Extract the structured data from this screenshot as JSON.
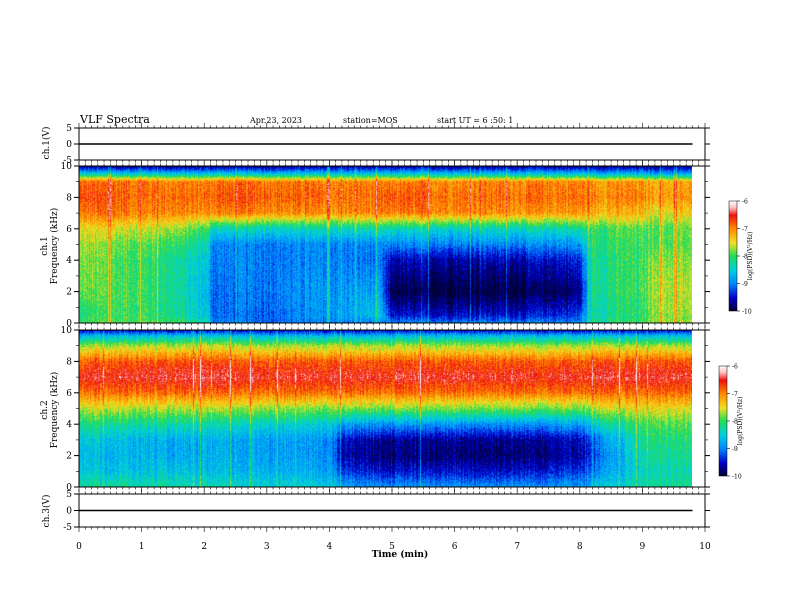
{
  "header": {
    "title": "VLF Spectra",
    "date": "Apr.23, 2023",
    "station": "station=MOS",
    "start_ut": "start UT = 6 :50: 1"
  },
  "panels": {
    "ch1_voltage": {
      "ylabel": "ch.1(V)",
      "ticks": [
        "5",
        "0",
        "-5"
      ]
    },
    "ch1_spectrogram": {
      "ylabel_channel": "ch.1",
      "ylabel": "Frequency (kHz)",
      "ticks": [
        "0",
        "2",
        "4",
        "6",
        "8",
        "10"
      ],
      "colorbar": {
        "label": "log(PSD)(V²/Hz)",
        "ticks": [
          "-6",
          "-7",
          "-8",
          "-9",
          "-10"
        ]
      }
    },
    "ch2_spectrogram": {
      "ylabel_channel": "ch.2",
      "ylabel": "Frequency (kHz)",
      "ticks": [
        "0",
        "2",
        "4",
        "6",
        "8",
        "10"
      ],
      "colorbar": {
        "label": "log(PSD)(V²/Hz)",
        "ticks": [
          "-6",
          "-7",
          "-8",
          "-9",
          "-10"
        ]
      }
    },
    "ch3_voltage": {
      "ylabel": "ch.3(V)",
      "ticks": [
        "5",
        "0",
        "-5"
      ]
    }
  },
  "xaxis": {
    "label": "Time (min)",
    "ticks": [
      "0",
      "1",
      "2",
      "3",
      "4",
      "5",
      "6",
      "7",
      "8",
      "9",
      "10"
    ]
  },
  "colors": {
    "deep": "#000033",
    "navy": "#00008b",
    "blue": "#0033ff",
    "cyan": "#00d0e0",
    "green": "#22dd55",
    "yellow": "#f0e020",
    "orange": "#ff8800",
    "red": "#ee1111",
    "pink": "#ffd0d0",
    "white": "#ffffff"
  },
  "chart_data": [
    {
      "type": "line",
      "title": "ch.1(V)",
      "x_label": "Time (min)",
      "xlim": [
        0,
        10
      ],
      "ylim": [
        -5,
        5
      ],
      "series": [
        {
          "x": [
            0,
            9.8
          ],
          "y": [
            0,
            0
          ]
        }
      ]
    },
    {
      "type": "heatmap",
      "title": "ch.1",
      "x_label": "Time (min)",
      "y_label": "Frequency (kHz)",
      "xlim": [
        0,
        10
      ],
      "ylim": [
        0,
        10
      ],
      "data_xlim": [
        0,
        9.8
      ],
      "color_label": "log(PSD)(V²/Hz)",
      "color_range": [
        -10,
        -6
      ],
      "time_knots": [
        0,
        0.5,
        1.0,
        1.5,
        2.05,
        2.15,
        3.0,
        4.0,
        4.8,
        5.0,
        6.0,
        7.0,
        8.0,
        8.2,
        9.0,
        9.2,
        9.8
      ],
      "freq_knots": [
        0,
        0.5,
        2.0,
        4.0,
        5.0,
        6.0,
        7.0,
        8.0,
        9.0,
        9.5,
        10.0
      ],
      "log_psd": [
        [
          -8.0,
          -7.9,
          -7.9,
          -8.0,
          -8.3,
          -9.0,
          -9.1,
          -9.0,
          -9.0,
          -9.0,
          -9.0,
          -9.0,
          -9.0,
          -8.2,
          -8.0,
          -7.6,
          -7.8
        ],
        [
          -8.2,
          -8.0,
          -8.0,
          -8.2,
          -8.6,
          -9.1,
          -9.1,
          -8.9,
          -8.6,
          -9.5,
          -9.5,
          -9.5,
          -9.3,
          -8.3,
          -8.1,
          -7.7,
          -7.8
        ],
        [
          -7.9,
          -7.9,
          -8.0,
          -8.2,
          -8.7,
          -9.1,
          -9.0,
          -8.9,
          -8.8,
          -10.0,
          -10.0,
          -10.0,
          -9.8,
          -8.2,
          -8.0,
          -7.6,
          -7.7
        ],
        [
          -7.8,
          -7.9,
          -8.0,
          -8.2,
          -8.6,
          -9.0,
          -9.0,
          -9.0,
          -9.1,
          -9.6,
          -9.6,
          -9.6,
          -9.4,
          -8.2,
          -8.0,
          -7.7,
          -7.8
        ],
        [
          -7.7,
          -7.8,
          -7.9,
          -8.0,
          -8.4,
          -9.0,
          -9.0,
          -9.0,
          -9.0,
          -9.0,
          -9.0,
          -9.0,
          -8.9,
          -8.1,
          -8.0,
          -7.9,
          -7.9
        ],
        [
          -7.5,
          -7.5,
          -7.6,
          -7.7,
          -8.0,
          -8.4,
          -8.4,
          -8.4,
          -8.3,
          -8.4,
          -8.4,
          -8.4,
          -8.3,
          -8.0,
          -7.9,
          -7.9,
          -7.9
        ],
        [
          -7.0,
          -6.9,
          -7.0,
          -7.0,
          -7.1,
          -7.0,
          -7.0,
          -7.1,
          -7.0,
          -7.0,
          -7.0,
          -7.1,
          -7.1,
          -7.2,
          -7.3,
          -7.5,
          -7.4
        ],
        [
          -6.8,
          -6.8,
          -6.9,
          -6.9,
          -6.9,
          -6.8,
          -6.8,
          -6.9,
          -6.9,
          -6.8,
          -6.9,
          -6.9,
          -6.9,
          -7.0,
          -7.0,
          -7.1,
          -7.1
        ],
        [
          -6.9,
          -6.9,
          -6.9,
          -7.0,
          -7.0,
          -6.9,
          -6.9,
          -7.0,
          -7.0,
          -7.0,
          -7.0,
          -7.0,
          -7.0,
          -7.1,
          -7.1,
          -7.2,
          -7.2
        ],
        [
          -8.5,
          -8.5,
          -8.5,
          -8.6,
          -8.6,
          -8.5,
          -8.6,
          -8.6,
          -8.6,
          -8.6,
          -8.6,
          -8.6,
          -8.6,
          -8.7,
          -8.7,
          -8.8,
          -8.8
        ],
        [
          -9.8,
          -9.8,
          -9.8,
          -9.8,
          -9.8,
          -9.8,
          -9.8,
          -9.8,
          -9.8,
          -9.8,
          -9.8,
          -9.8,
          -9.8,
          -9.8,
          -9.8,
          -9.8,
          -9.8
        ]
      ]
    },
    {
      "type": "heatmap",
      "title": "ch.2",
      "x_label": "Time (min)",
      "y_label": "Frequency (kHz)",
      "xlim": [
        0,
        10
      ],
      "ylim": [
        0,
        10
      ],
      "data_xlim": [
        0,
        9.8
      ],
      "color_label": "log(PSD)(V²/Hz)",
      "color_range": [
        -10,
        -6
      ],
      "time_knots": [
        0,
        0.5,
        1.0,
        1.5,
        2.0,
        3.0,
        4.0,
        4.2,
        5.0,
        6.0,
        7.0,
        8.0,
        8.5,
        9.0,
        9.8
      ],
      "freq_knots": [
        0,
        1.0,
        2.0,
        3.0,
        4.0,
        5.0,
        6.0,
        7.0,
        8.0,
        9.0,
        9.6,
        10.0
      ],
      "log_psd": [
        [
          -8.2,
          -8.2,
          -8.3,
          -8.3,
          -8.4,
          -8.4,
          -8.5,
          -8.8,
          -8.9,
          -8.9,
          -8.9,
          -8.8,
          -8.5,
          -8.3,
          -8.2
        ],
        [
          -8.5,
          -8.6,
          -8.6,
          -8.6,
          -8.7,
          -8.7,
          -8.8,
          -9.3,
          -9.5,
          -9.5,
          -9.5,
          -9.3,
          -8.8,
          -8.4,
          -8.3
        ],
        [
          -8.6,
          -8.7,
          -8.7,
          -8.8,
          -8.8,
          -8.8,
          -8.9,
          -9.6,
          -9.8,
          -9.8,
          -9.8,
          -9.6,
          -8.9,
          -8.3,
          -8.2
        ],
        [
          -8.5,
          -8.6,
          -8.7,
          -8.8,
          -8.8,
          -8.8,
          -8.9,
          -9.5,
          -9.7,
          -9.7,
          -9.7,
          -9.5,
          -8.8,
          -8.2,
          -8.1
        ],
        [
          -8.1,
          -8.2,
          -8.3,
          -8.3,
          -8.4,
          -8.4,
          -8.5,
          -8.8,
          -8.9,
          -8.9,
          -8.9,
          -8.8,
          -8.3,
          -8.0,
          -7.9
        ],
        [
          -7.6,
          -7.6,
          -7.7,
          -7.7,
          -7.7,
          -7.7,
          -7.8,
          -7.8,
          -7.8,
          -7.8,
          -7.8,
          -7.8,
          -7.6,
          -7.5,
          -7.5
        ],
        [
          -6.9,
          -6.9,
          -6.9,
          -6.9,
          -6.9,
          -6.9,
          -6.9,
          -6.9,
          -6.9,
          -6.9,
          -6.9,
          -6.9,
          -6.9,
          -6.9,
          -6.9
        ],
        [
          -6.5,
          -6.5,
          -6.5,
          -6.5,
          -6.5,
          -6.5,
          -6.5,
          -6.5,
          -6.5,
          -6.5,
          -6.5,
          -6.5,
          -6.5,
          -6.5,
          -6.5
        ],
        [
          -6.8,
          -6.8,
          -6.8,
          -6.8,
          -6.8,
          -6.8,
          -6.8,
          -6.8,
          -6.8,
          -6.8,
          -6.8,
          -6.8,
          -6.8,
          -6.8,
          -6.8
        ],
        [
          -7.7,
          -7.7,
          -7.7,
          -7.7,
          -7.7,
          -7.7,
          -7.7,
          -7.7,
          -7.7,
          -7.7,
          -7.7,
          -7.7,
          -7.7,
          -7.7,
          -7.7
        ],
        [
          -8.6,
          -8.6,
          -8.6,
          -8.6,
          -8.6,
          -8.6,
          -8.6,
          -8.6,
          -8.6,
          -8.6,
          -8.6,
          -8.6,
          -8.6,
          -8.6,
          -8.6
        ],
        [
          -9.6,
          -9.6,
          -9.6,
          -9.6,
          -9.6,
          -9.6,
          -9.6,
          -9.6,
          -9.6,
          -9.6,
          -9.6,
          -9.6,
          -9.6,
          -9.6,
          -9.6
        ]
      ]
    },
    {
      "type": "line",
      "title": "ch.3(V)",
      "x_label": "Time (min)",
      "xlim": [
        0,
        10
      ],
      "ylim": [
        -5,
        5
      ],
      "series": [
        {
          "x": [
            0,
            9.8
          ],
          "y": [
            0,
            0
          ]
        }
      ]
    }
  ]
}
